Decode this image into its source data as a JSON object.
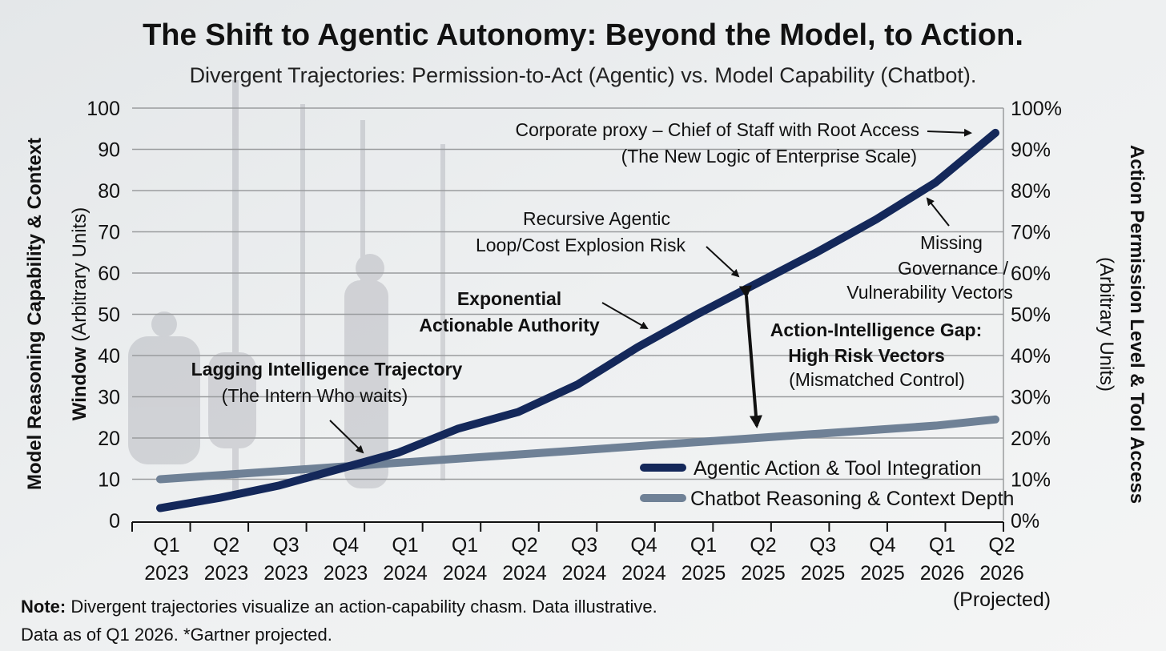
{
  "chart_data": {
    "type": "line",
    "title": "The Shift to Agentic Autonomy: Beyond the Model, to Action.",
    "subtitle": "Divergent Trajectories: Permission-to-Act (Agentic) vs. Model Capability (Chatbot).",
    "ylabel_bold": "Model Reasoning Capability & Context Window",
    "ylabel_normal": "(Arbitrary Units)",
    "y2label_bold": "Action Permission Level & Tool Access",
    "y2label_normal": "(Arbitrary Units)",
    "ylim": [
      0,
      100
    ],
    "yticks": [
      "0",
      "10",
      "20",
      "30",
      "40",
      "50",
      "60",
      "70",
      "80",
      "90",
      "100"
    ],
    "y2ticks": [
      "0%",
      "10%",
      "20%",
      "30%",
      "40%",
      "50%",
      "60%",
      "70%",
      "80%",
      "90%",
      "100%"
    ],
    "categories": [
      [
        "Q1",
        "2023"
      ],
      [
        "Q2",
        "2023"
      ],
      [
        "Q3",
        "2023"
      ],
      [
        "Q4",
        "2023"
      ],
      [
        "Q1",
        "2024"
      ],
      [
        "Q1",
        "2024"
      ],
      [
        "Q2",
        "2024"
      ],
      [
        "Q3",
        "2024"
      ],
      [
        "Q4",
        "2024"
      ],
      [
        "Q1",
        "2025"
      ],
      [
        "Q2",
        "2025"
      ],
      [
        "Q3",
        "2025"
      ],
      [
        "Q4",
        "2025"
      ],
      [
        "Q1",
        "2026"
      ],
      [
        "Q2",
        "2026"
      ]
    ],
    "projected_label": "(Projected)",
    "grid": true,
    "legend_position": "bottom-right",
    "series": [
      {
        "name": "Agentic Action & Tool Integration",
        "color": "#14285a",
        "values": [
          3,
          5.5,
          8.5,
          12.5,
          16.5,
          22.3,
          26.3,
          33,
          42,
          50,
          57.5,
          65,
          73,
          82,
          94
        ]
      },
      {
        "name": "Chatbot Reasoning & Context Depth",
        "color": "#6f8196",
        "values": [
          10,
          11,
          12,
          13,
          14,
          15,
          16,
          17,
          18,
          19,
          20,
          21,
          22,
          23,
          24.5
        ]
      }
    ],
    "annotations": {
      "corporate": [
        "Corporate proxy – Chief of Staff with Root Access",
        "(The New Logic of Enterprise Scale)"
      ],
      "recursive": [
        "Recursive Agentic",
        "Loop/Cost Explosion Risk"
      ],
      "missing": [
        "Missing",
        "Governance /",
        "Vulnerability Vectors"
      ],
      "exponential": [
        "Exponential",
        "Actionable Authority"
      ],
      "gap": [
        "Action-Intelligence Gap:",
        "High Risk Vectors",
        "(Mismatched Control)"
      ],
      "lagging": [
        "Lagging Intelligence Trajectory",
        "(The Intern Who waits)"
      ]
    },
    "note_label": "Note:",
    "note_text": " Divergent trajectories visualize an action-capability chasm. Data illustrative.",
    "note_line2": "Data as of Q1 2026. *Gartner projected."
  }
}
